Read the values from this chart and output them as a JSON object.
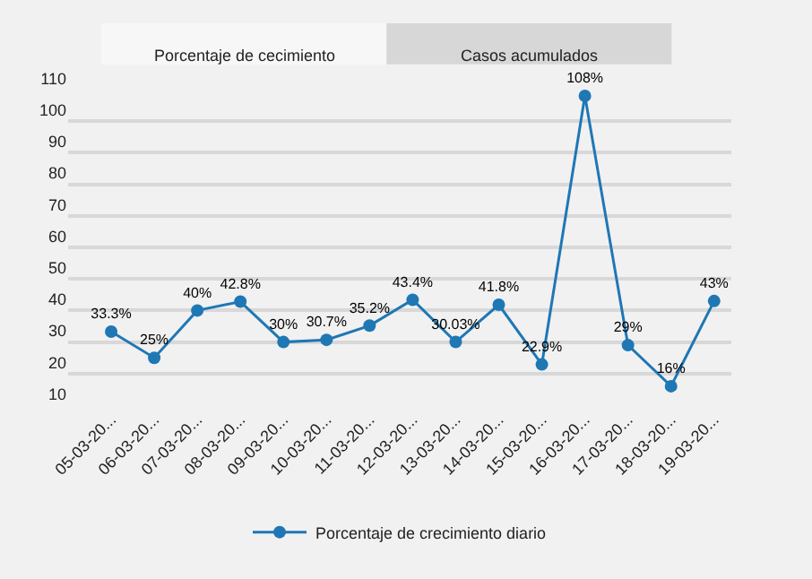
{
  "chart_data": {
    "type": "line",
    "annotations": [
      "Porcentaje de cecimiento",
      "Casos acumulados"
    ],
    "categories": [
      "05-03-20...",
      "06-03-20...",
      "07-03-20...",
      "08-03-20...",
      "09-03-20...",
      "10-03-20...",
      "11-03-20...",
      "12-03-20...",
      "13-03-20...",
      "14-03-20...",
      "15-03-20...",
      "16-03-20...",
      "17-03-20...",
      "18-03-20...",
      "19-03-20..."
    ],
    "series": [
      {
        "name": "Porcentaje de crecimiento diario",
        "color": "#1f77b4",
        "values": [
          33.3,
          25,
          40,
          42.8,
          30,
          30.7,
          35.2,
          43.4,
          30.03,
          41.8,
          22.9,
          108,
          29,
          16,
          43
        ],
        "value_labels": [
          "33.3%",
          "25%",
          "40%",
          "42.8%",
          "30%",
          "30.7%",
          "35.2%",
          "43.4%",
          "30.03%",
          "41.8%",
          "22.9%",
          "108%",
          "29%",
          "16%",
          "43%"
        ]
      }
    ],
    "ylim": [
      10,
      110
    ],
    "yticks": [
      10,
      20,
      30,
      40,
      50,
      60,
      70,
      80,
      90,
      100,
      110
    ],
    "grid": "y",
    "legend": "bottom",
    "marker": "circle",
    "line_style": "solid"
  }
}
